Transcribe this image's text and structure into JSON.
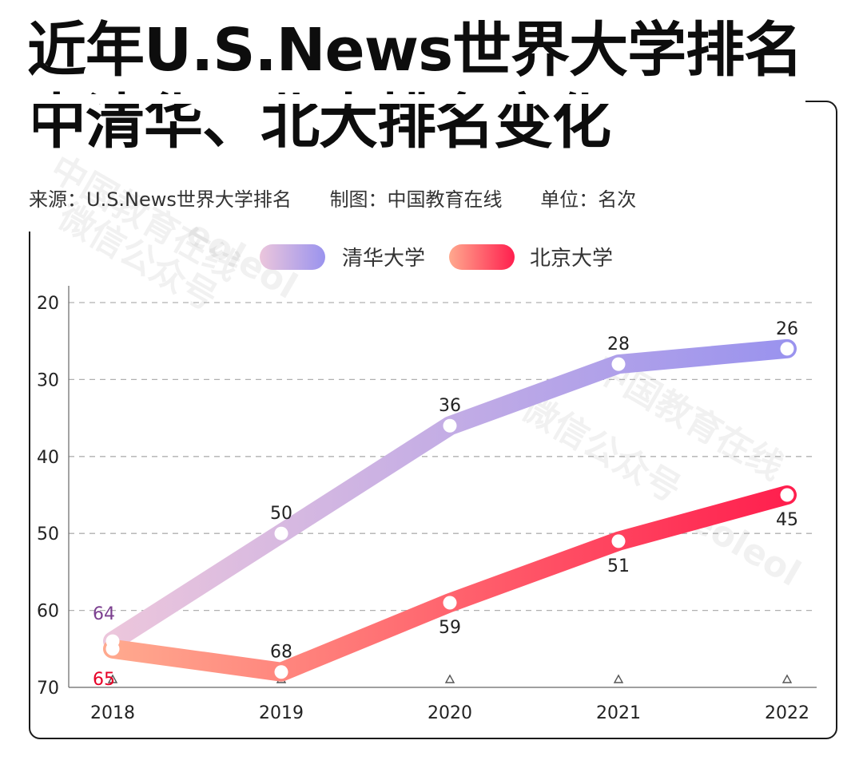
{
  "title": {
    "line1": "近年U.S.News世界大学排名",
    "line2": "中清华、北大排名变化"
  },
  "meta": {
    "source": "来源：U.S.News世界大学排名",
    "maker": "制图：中国教育在线",
    "unit": "单位：名次"
  },
  "watermark": {
    "text1": "中国教育在线",
    "text2": "微信公众号",
    "text3": "eoleol"
  },
  "colors": {
    "tsinghua_start": "#ecc6dc",
    "tsinghua_end": "#9a93ee",
    "pku_start": "#ffa98e",
    "pku_end": "#ff1f4e",
    "grid": "#b0b0b0",
    "axis": "#666666"
  },
  "chart_data": {
    "type": "line",
    "categories": [
      "2018",
      "2019",
      "2020",
      "2021",
      "2022"
    ],
    "y_axis": {
      "range": [
        20,
        70
      ],
      "inverted": true,
      "ticks": [
        "20",
        "30",
        "40",
        "50",
        "60",
        "70"
      ]
    },
    "grid": "horizontal-dashed",
    "legend": "top-center",
    "series": [
      {
        "name": "清华大学",
        "values": [
          64,
          50,
          36,
          28,
          26
        ],
        "labels": [
          "64",
          "50",
          "36",
          "28",
          "26"
        ],
        "label_colors": [
          "#7b3f8f",
          "#222222",
          "#222222",
          "#222222",
          "#222222"
        ]
      },
      {
        "name": "北京大学",
        "values": [
          65,
          68,
          59,
          51,
          45
        ],
        "labels": [
          "65",
          "68",
          "59",
          "51",
          "45"
        ],
        "label_colors": [
          "#e60026",
          "#222222",
          "#222222",
          "#222222",
          "#222222"
        ]
      }
    ]
  }
}
